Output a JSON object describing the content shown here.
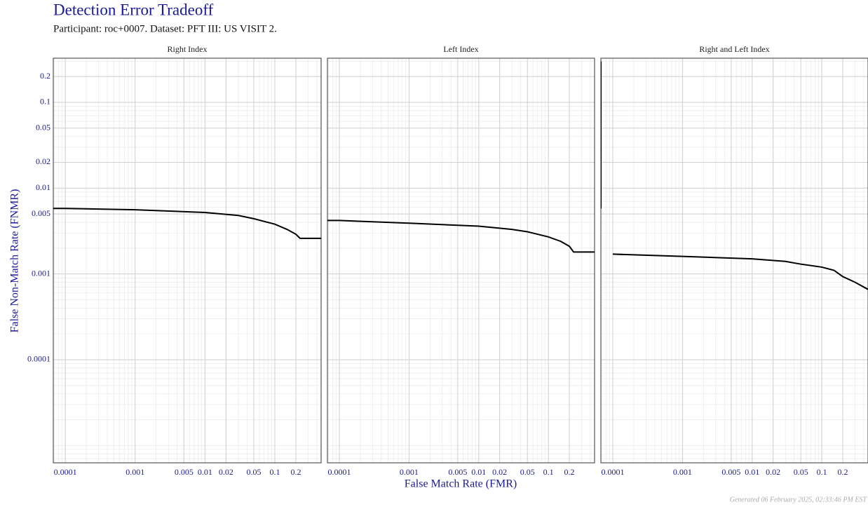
{
  "title": "Detection Error Tradeoff",
  "subtitle": "Participant: roc+0007. Dataset: PFT III: US VISIT 2.",
  "x_label": "False Match Rate (FMR)",
  "y_label": "False Non-Match Rate (FNMR)",
  "footer": "Generated 06 February 2025, 02:33:46 PM EST",
  "chart_data": [
    {
      "type": "line",
      "title": "Right Index",
      "log_x": true,
      "log_y": true,
      "grid": true,
      "minor_grid": true,
      "xlim": [
        6.74e-05,
        0.46
      ],
      "ylim": [
        6.28e-06,
        0.327
      ],
      "xticks": [
        0.0001,
        0.001,
        0.005,
        0.01,
        0.02,
        0.05,
        0.1,
        0.2
      ],
      "yticks": [
        0.0001,
        0.001,
        0.005,
        0.01,
        0.02,
        0.05,
        0.1,
        0.2
      ],
      "x": [
        6.74e-05,
        0.0001,
        0.001,
        0.01,
        0.03,
        0.05,
        0.1,
        0.15,
        0.2,
        0.23,
        0.46
      ],
      "series": [
        {
          "name": "Right Index",
          "color": "#000000",
          "values": [
            0.0058,
            0.0058,
            0.0056,
            0.0052,
            0.0048,
            0.0044,
            0.0038,
            0.0033,
            0.0029,
            0.0026,
            0.0026
          ]
        }
      ]
    },
    {
      "type": "line",
      "title": "Left Index",
      "log_x": true,
      "log_y": true,
      "grid": true,
      "minor_grid": true,
      "xlim": [
        6.74e-05,
        0.46
      ],
      "ylim": [
        6.28e-06,
        0.327
      ],
      "xticks": [
        0.0001,
        0.001,
        0.005,
        0.01,
        0.02,
        0.05,
        0.1,
        0.2
      ],
      "yticks": [
        0.0001,
        0.001,
        0.005,
        0.01,
        0.02,
        0.05,
        0.1,
        0.2
      ],
      "x": [
        6.74e-05,
        0.0001,
        0.001,
        0.01,
        0.03,
        0.05,
        0.1,
        0.15,
        0.2,
        0.23,
        0.46
      ],
      "series": [
        {
          "name": "Left Index",
          "color": "#000000",
          "values": [
            0.0042,
            0.0042,
            0.0039,
            0.0036,
            0.0033,
            0.0031,
            0.0027,
            0.0024,
            0.0021,
            0.0018,
            0.0018
          ]
        }
      ]
    },
    {
      "type": "line",
      "title": "Right and Left Index",
      "log_x": true,
      "log_y": true,
      "grid": true,
      "minor_grid": true,
      "xlim": [
        6.74e-05,
        0.46
      ],
      "ylim": [
        6.28e-06,
        0.327
      ],
      "xticks": [
        0.0001,
        0.001,
        0.005,
        0.01,
        0.02,
        0.05,
        0.1,
        0.2
      ],
      "yticks": [
        0.0001,
        0.001,
        0.005,
        0.01,
        0.02,
        0.05,
        0.1,
        0.2
      ],
      "x": [
        6.74e-05,
        6.74e-05,
        6.74e-05,
        0.0001,
        0.001,
        0.01,
        0.03,
        0.05,
        0.1,
        0.15,
        0.2,
        0.3,
        0.46
      ],
      "series": [
        {
          "name": "Right and Left Index",
          "color": "#000000",
          "values": [
            0.3,
            0.0058,
            null,
            0.0017,
            0.0016,
            0.0015,
            0.0014,
            0.0013,
            0.0012,
            0.0011,
            0.00093,
            0.0008,
            0.00066
          ]
        }
      ]
    }
  ]
}
